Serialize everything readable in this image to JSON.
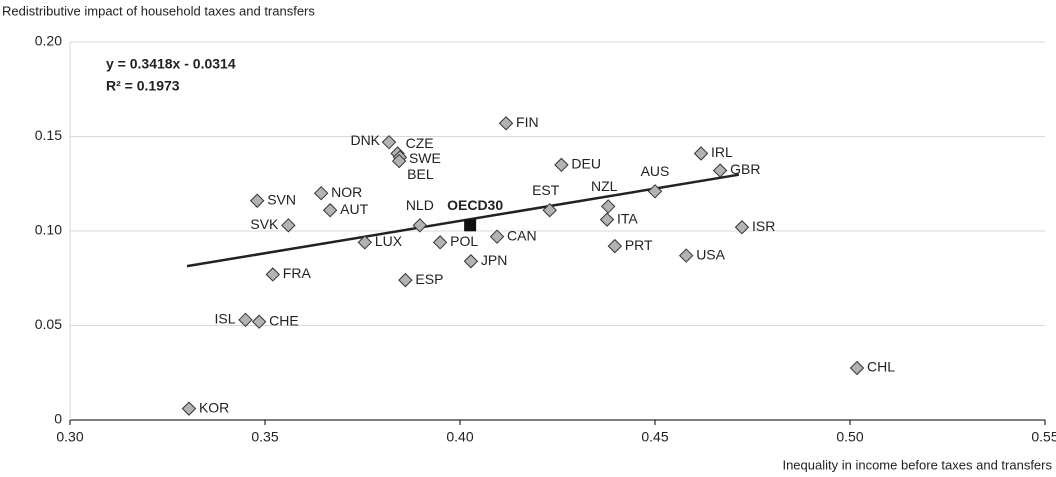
{
  "chart_data": {
    "type": "scatter",
    "y_axis_label": "Redistributive impact of household taxes and transfers",
    "x_axis_label": "Inequality in income before taxes and transfers",
    "annotations": [
      "y = 0.3418x - 0.0314",
      "R² = 0.1973"
    ],
    "xlim": [
      0.3,
      0.55
    ],
    "xticks": [
      {
        "value": 0.3,
        "label": "0.30"
      },
      {
        "value": 0.35,
        "label": "0.35"
      },
      {
        "value": 0.4,
        "label": "0.40"
      },
      {
        "value": 0.45,
        "label": "0.45"
      },
      {
        "value": 0.5,
        "label": "0.50"
      },
      {
        "value": 0.55,
        "label": "0.55"
      }
    ],
    "ylim": [
      0,
      0.2
    ],
    "yticks": [
      0,
      {
        "value": 0.05,
        "label": "0.05"
      },
      {
        "value": 0.1,
        "label": "0.10"
      },
      {
        "value": 0.15,
        "label": "0.15"
      },
      {
        "value": 0.2,
        "label": "0.20"
      }
    ],
    "grid": true,
    "points": {
      "color": "#b3b3b3",
      "labels": [
        "KOR",
        "ISL",
        "CHE",
        "FRA",
        "SVK",
        "SVN",
        "NOR",
        "AUT",
        "LUX",
        "DNK",
        "CZE",
        "SWE",
        "BEL",
        "NLD",
        "ESP",
        "POL",
        "FIN",
        "JPN",
        "CAN",
        "EST",
        "DEU",
        "NZL",
        "ITA",
        "PRT",
        "AUS",
        "USA",
        "IRL",
        "GBR",
        "ISR",
        "CHL"
      ],
      "x": [
        0.3305,
        0.345,
        0.3485,
        0.352,
        0.356,
        0.348,
        0.3644,
        0.3667,
        0.3756,
        0.3818,
        0.384,
        0.3846,
        0.3844,
        0.3897,
        0.386,
        0.3949,
        0.4118,
        0.4028,
        0.4095,
        0.423,
        0.426,
        0.438,
        0.4377,
        0.4397,
        0.45,
        0.458,
        0.4618,
        0.4667,
        0.4723,
        0.5018
      ],
      "y": [
        0.006,
        0.053,
        0.052,
        0.077,
        0.103,
        0.116,
        0.12,
        0.111,
        0.094,
        0.147,
        0.141,
        0.139,
        0.137,
        0.103,
        0.074,
        0.094,
        0.157,
        0.084,
        0.097,
        0.111,
        0.135,
        0.113,
        0.106,
        0.092,
        0.121,
        0.087,
        0.141,
        0.132,
        0.102,
        0.0275
      ]
    },
    "highlight": {
      "label": "OECD30",
      "x": 0.4026,
      "y": 0.103,
      "color": "#111111"
    },
    "fit": {
      "x": [
        0.33,
        0.4715
      ],
      "y": [
        0.0814,
        0.1298
      ],
      "color": "#222222"
    }
  }
}
